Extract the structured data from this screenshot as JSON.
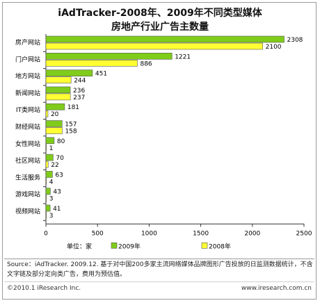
{
  "chart_data": {
    "type": "bar",
    "orientation": "horizontal",
    "title": "iAdTracker-2008年、2009年不同类型媒体",
    "subtitle": "房地产行业广告主数量",
    "categories": [
      "房产网站",
      "门户网站",
      "地方网站",
      "新闻网站",
      "IT类网站",
      "财经网站",
      "女性网站",
      "社区网站",
      "生活服务",
      "游戏网站",
      "视频网站"
    ],
    "series": [
      {
        "name": "2009年",
        "color": "#7fcc1a",
        "values": [
          2308,
          1221,
          451,
          236,
          181,
          157,
          80,
          70,
          63,
          43,
          41
        ]
      },
      {
        "name": "2008年",
        "color": "#ffff33",
        "values": [
          2100,
          886,
          244,
          237,
          20,
          158,
          1,
          22,
          4,
          3,
          3
        ]
      }
    ],
    "xlim": [
      0,
      2500
    ],
    "xticks": [
      0,
      500,
      1000,
      1500,
      2000,
      2500
    ],
    "unit_label": "单位：家",
    "legend_position": "bottom",
    "grid": false
  },
  "source_text": "Source：iAdTracker. 2009.12. 基于对中国200多家主流网络媒体品牌图形广告投放的日监测数据统计，不含文字链及部分定向类广告，费用为预估值。",
  "copyright": "©2010.1 iResearch Inc.",
  "website": "www.iresearch.com.cn"
}
